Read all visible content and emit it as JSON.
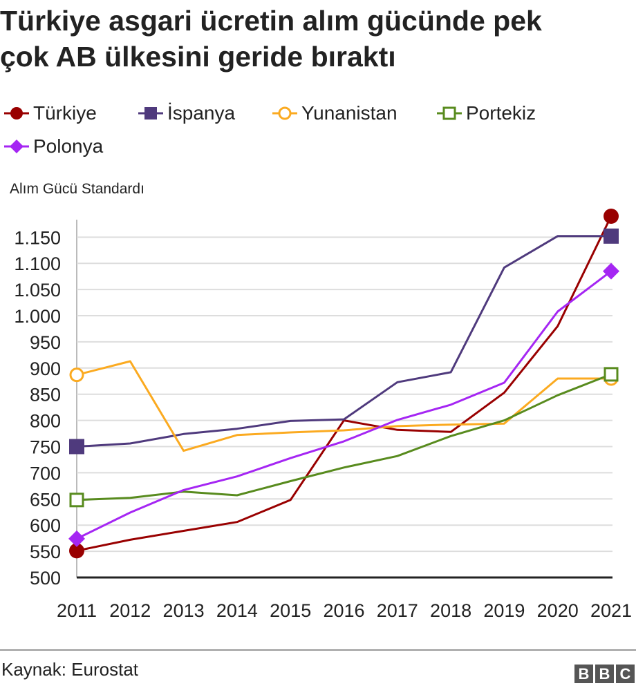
{
  "title_lines": [
    "Türkiye asgari ücretin alım gücünde pek",
    "çok AB ülkesini geride bıraktı"
  ],
  "legend": [
    {
      "label": "Türkiye",
      "color": "#990000",
      "marker": "circle-filled"
    },
    {
      "label": "İspanya",
      "color": "#4f3a7d",
      "marker": "square-filled"
    },
    {
      "label": "Yunanistan",
      "color": "#fbaa20",
      "marker": "circle-open"
    },
    {
      "label": "Portekiz",
      "color": "#588b1e",
      "marker": "square-open"
    },
    {
      "label": "Polonya",
      "color": "#a526f3",
      "marker": "diamond-filled"
    }
  ],
  "source": "Kaynak: Eurostat",
  "logo_letters": [
    "B",
    "B",
    "C"
  ],
  "chart_data": {
    "type": "line",
    "title": "Türkiye asgari ücretin alım gücünde pek çok AB ülkesini geride bıraktı",
    "ylabel": "Alım Gücü Standardı",
    "xlabel": "",
    "x": [
      "2011",
      "2012",
      "2013",
      "2014",
      "2015",
      "2016",
      "2017",
      "2018",
      "2019",
      "2020",
      "2021"
    ],
    "ylim": [
      500,
      1190
    ],
    "yticks": [
      500,
      550,
      600,
      650,
      700,
      750,
      800,
      850,
      900,
      950,
      1000,
      1050,
      1100,
      1150
    ],
    "ytick_labels": [
      "500",
      "550",
      "600",
      "650",
      "700",
      "750",
      "800",
      "850",
      "900",
      "950",
      "1.000",
      "1.050",
      "1.100",
      "1.150"
    ],
    "grid": "horizontal",
    "legend_position": "top",
    "series": [
      {
        "name": "Türkiye",
        "color": "#990000",
        "marker": "circle-filled",
        "values": [
          551,
          572,
          589,
          606,
          648,
          800,
          782,
          778,
          853,
          980,
          1190
        ]
      },
      {
        "name": "İspanya",
        "color": "#4f3a7d",
        "marker": "square-filled",
        "values": [
          750,
          756,
          774,
          784,
          799,
          802,
          873,
          892,
          1092,
          1152,
          1152
        ]
      },
      {
        "name": "Yunanistan",
        "color": "#fbaa20",
        "marker": "circle-open",
        "values": [
          887,
          913,
          742,
          772,
          777,
          781,
          789,
          792,
          794,
          880,
          880
        ]
      },
      {
        "name": "Portekiz",
        "color": "#588b1e",
        "marker": "square-open",
        "values": [
          648,
          652,
          664,
          657,
          684,
          710,
          732,
          770,
          800,
          848,
          888
        ]
      },
      {
        "name": "Polonya",
        "color": "#a526f3",
        "marker": "diamond-filled",
        "values": [
          574,
          624,
          667,
          693,
          728,
          760,
          801,
          830,
          872,
          1008,
          1085
        ]
      }
    ]
  }
}
